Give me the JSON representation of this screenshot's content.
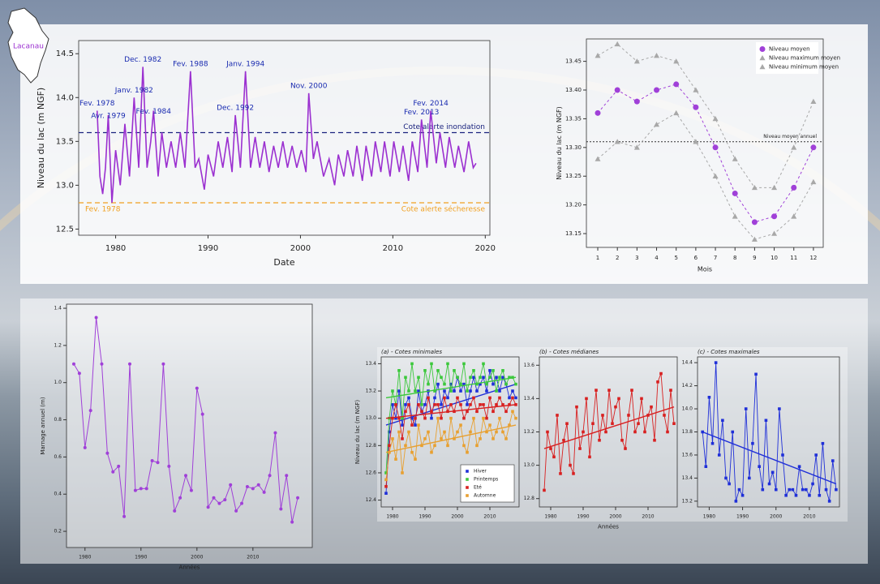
{
  "map_label": "Lacanau",
  "chart_data": [
    {
      "type": "line",
      "xlabel": "Date",
      "ylabel": "Niveau du lac (m NGF)",
      "color": "#9b30d0",
      "x": [
        1978.0,
        1978.3,
        1978.6,
        1978.9,
        1979.2,
        1979.6,
        1980.0,
        1980.5,
        1981.0,
        1981.5,
        1982.0,
        1982.5,
        1982.95,
        1983.4,
        1983.8,
        1984.1,
        1984.6,
        1985.0,
        1985.5,
        1986.0,
        1986.5,
        1987.0,
        1987.5,
        1988.1,
        1988.6,
        1989.0,
        1989.6,
        1990.0,
        1990.6,
        1991.1,
        1991.6,
        1992.1,
        1992.6,
        1992.95,
        1993.5,
        1994.05,
        1994.6,
        1995.1,
        1995.6,
        1996.1,
        1996.6,
        1997.1,
        1997.6,
        1998.1,
        1998.6,
        1999.1,
        1999.6,
        2000.1,
        2000.6,
        2000.9,
        2001.4,
        2001.8,
        2002.5,
        2003.1,
        2003.7,
        2004.1,
        2004.7,
        2005.1,
        2005.7,
        2006.1,
        2006.7,
        2007.1,
        2007.7,
        2008.1,
        2008.7,
        2009.1,
        2009.7,
        2010.1,
        2010.7,
        2011.1,
        2011.7,
        2012.1,
        2012.7,
        2013.1,
        2013.7,
        2014.1,
        2014.7,
        2015.1,
        2015.7,
        2016.1,
        2016.7,
        2017.1,
        2017.7,
        2018.2,
        2018.7,
        2019.0
      ],
      "values": [
        13.85,
        13.1,
        12.9,
        13.2,
        13.8,
        12.8,
        13.4,
        13.0,
        13.7,
        13.1,
        14.0,
        13.2,
        14.35,
        13.2,
        13.5,
        13.85,
        13.1,
        13.6,
        13.2,
        13.5,
        13.2,
        13.6,
        13.2,
        14.3,
        13.2,
        13.3,
        12.95,
        13.35,
        13.1,
        13.5,
        13.2,
        13.55,
        13.15,
        13.8,
        13.2,
        14.3,
        13.2,
        13.55,
        13.2,
        13.5,
        13.15,
        13.45,
        13.2,
        13.5,
        13.2,
        13.45,
        13.2,
        13.4,
        13.15,
        14.05,
        13.3,
        13.5,
        13.1,
        13.3,
        13.0,
        13.35,
        13.1,
        13.4,
        13.1,
        13.45,
        13.05,
        13.45,
        13.1,
        13.5,
        13.15,
        13.5,
        13.1,
        13.5,
        13.15,
        13.45,
        13.05,
        13.5,
        13.15,
        13.75,
        13.2,
        13.85,
        13.25,
        13.6,
        13.2,
        13.55,
        13.2,
        13.45,
        13.15,
        13.5,
        13.2,
        13.25
      ],
      "xlim": [
        1976,
        2020.5
      ],
      "ylim": [
        12.43,
        14.65
      ],
      "xticks": [
        1980,
        1990,
        2000,
        2010,
        2020
      ],
      "yticks": [
        12.5,
        {
          "value": 13,
          "label": "13.0"
        },
        13.5,
        {
          "value": 14,
          "label": "14.0"
        },
        14.5
      ],
      "annotations": [
        {
          "text": "Fev. 1978",
          "x": 1978.0,
          "y": 13.85
        },
        {
          "text": "Avr. 1979",
          "x": 1979.2,
          "y": 13.8
        },
        {
          "text": "Janv. 1982",
          "x": 1982.0,
          "y": 14.0
        },
        {
          "text": "Dec. 1982",
          "x": 1982.95,
          "y": 14.35
        },
        {
          "text": "Fev. 1984",
          "x": 1984.1,
          "y": 13.85
        },
        {
          "text": "Fev. 1988",
          "x": 1988.1,
          "y": 14.3
        },
        {
          "text": "Dec. 1992",
          "x": 1992.95,
          "y": 13.8
        },
        {
          "text": "Janv. 1994",
          "x": 1994.05,
          "y": 14.3
        },
        {
          "text": "Nov. 2000",
          "x": 2000.9,
          "y": 14.05
        },
        {
          "text": "Fev. 2013",
          "x": 2013.1,
          "y": 13.75
        },
        {
          "text": "Fev. 2014",
          "x": 2014.1,
          "y": 13.85
        }
      ],
      "thresholds": [
        {
          "label": "Cote alerte inondation",
          "value": 13.6,
          "color": "#1a237e"
        },
        {
          "label": "Cote alerte sécheresse",
          "value": 12.8,
          "color": "#f0a020",
          "annotation": "Fev. 1978"
        }
      ]
    },
    {
      "type": "line",
      "xlabel": "Mois",
      "ylabel": "Niveau du lac (m NGF)",
      "x": [
        1,
        2,
        3,
        4,
        5,
        6,
        7,
        8,
        9,
        10,
        11,
        12
      ],
      "series": [
        {
          "name": "Niveau moyen",
          "color": "#a040d8",
          "marker": "circle",
          "values": [
            13.36,
            13.4,
            13.38,
            13.4,
            13.41,
            13.37,
            13.3,
            13.22,
            13.17,
            13.18,
            13.23,
            13.3
          ]
        },
        {
          "name": "Niveau maximum moyen",
          "color": "#a8a8a8",
          "marker": "triangle",
          "values": [
            13.46,
            13.48,
            13.45,
            13.46,
            13.45,
            13.4,
            13.35,
            13.28,
            13.23,
            13.23,
            13.3,
            13.38
          ]
        },
        {
          "name": "Niveau minimum moyen",
          "color": "#a8a8a8",
          "marker": "triangle",
          "values": [
            13.28,
            13.31,
            13.3,
            13.34,
            13.36,
            13.31,
            13.25,
            13.18,
            13.14,
            13.15,
            13.18,
            13.24
          ]
        }
      ],
      "line_style": "dashed",
      "legend": "top-right",
      "xlim": [
        0.42,
        12.5
      ],
      "ylim": [
        13.126,
        13.489
      ],
      "xticks": [
        1,
        2,
        3,
        4,
        5,
        6,
        7,
        8,
        9,
        10,
        11,
        12
      ],
      "yticks": [
        13.15,
        {
          "value": 13.2,
          "label": "13.20"
        },
        13.25,
        {
          "value": 13.3,
          "label": "13.30"
        },
        13.35,
        {
          "value": 13.4,
          "label": "13.40"
        },
        13.45
      ],
      "reference": {
        "label": "Niveau moyen annuel",
        "value": 13.31
      }
    },
    {
      "type": "line",
      "xlabel": "Années",
      "ylabel": "Marnage annuel (m)",
      "color": "#a040d8",
      "marker": "circle",
      "x": [
        1978,
        1979,
        1980,
        1981,
        1982,
        1983,
        1984,
        1985,
        1986,
        1987,
        1988,
        1989,
        1990,
        1991,
        1992,
        1993,
        1994,
        1995,
        1996,
        1997,
        1998,
        1999,
        2000,
        2001,
        2002,
        2003,
        2004,
        2005,
        2006,
        2007,
        2008,
        2009,
        2010,
        2011,
        2012,
        2013,
        2014,
        2015,
        2016,
        2017,
        2018
      ],
      "values": [
        1.1,
        1.05,
        0.65,
        0.85,
        1.35,
        1.1,
        0.62,
        0.52,
        0.55,
        0.28,
        1.1,
        0.42,
        0.43,
        0.43,
        0.58,
        0.57,
        1.1,
        0.55,
        0.31,
        0.38,
        0.5,
        0.42,
        0.97,
        0.83,
        0.33,
        0.38,
        0.35,
        0.37,
        0.45,
        0.31,
        0.35,
        0.44,
        0.43,
        0.45,
        0.41,
        0.5,
        0.73,
        0.32,
        0.5,
        0.25,
        0.38
      ],
      "xlim": [
        1976.7,
        2020.6
      ],
      "ylim": [
        0.113,
        1.422
      ],
      "xticks": [
        1980,
        1990,
        2000,
        2010
      ],
      "yticks": [
        0.2,
        0.4,
        0.6,
        0.8,
        {
          "value": 1,
          "label": "1.0"
        },
        1.2,
        1.4
      ]
    },
    {
      "type": "line",
      "title": "(a) - Cotes minimales",
      "ylabel": "Niveau du lac (m NGF)",
      "marker": "square",
      "legend": "bottom-right",
      "x": [
        1978,
        1979,
        1980,
        1981,
        1982,
        1983,
        1984,
        1985,
        1986,
        1987,
        1988,
        1989,
        1990,
        1991,
        1992,
        1993,
        1994,
        1995,
        1996,
        1997,
        1998,
        1999,
        2000,
        2001,
        2002,
        2003,
        2004,
        2005,
        2006,
        2007,
        2008,
        2009,
        2010,
        2011,
        2012,
        2013,
        2014,
        2015,
        2016,
        2017,
        2018
      ],
      "series": [
        {
          "name": "Hiver",
          "color": "#1f2fd8",
          "values": [
            12.45,
            12.9,
            13.1,
            13.0,
            13.2,
            12.95,
            13.1,
            13.15,
            13.0,
            12.95,
            13.2,
            13.05,
            13.1,
            13.2,
            13.0,
            13.15,
            13.25,
            13.1,
            13.2,
            13.15,
            13.25,
            13.2,
            13.3,
            13.2,
            13.25,
            13.1,
            13.2,
            13.3,
            13.2,
            13.25,
            13.3,
            13.2,
            13.35,
            13.25,
            13.3,
            13.2,
            13.3,
            13.25,
            13.15,
            13.2,
            13.15
          ],
          "trend": {
            "x": [
              1978,
              2018
            ],
            "values": [
              12.95,
              13.25
            ]
          }
        },
        {
          "name": "Printemps",
          "color": "#3cc83c",
          "values": [
            12.6,
            13.0,
            13.2,
            13.1,
            13.35,
            13.0,
            13.3,
            13.2,
            13.4,
            13.2,
            13.3,
            13.1,
            13.35,
            13.25,
            13.4,
            13.2,
            13.35,
            13.3,
            13.25,
            13.4,
            13.2,
            13.35,
            13.3,
            13.25,
            13.4,
            13.2,
            13.3,
            13.35,
            13.25,
            13.3,
            13.4,
            13.25,
            13.3,
            13.35,
            13.2,
            13.3,
            13.35,
            13.25,
            13.3,
            13.3,
            13.25
          ],
          "trend": {
            "x": [
              1978,
              2018
            ],
            "values": [
              13.15,
              13.3
            ]
          }
        },
        {
          "name": "Eté",
          "color": "#d82020",
          "values": [
            12.5,
            12.8,
            13.0,
            13.1,
            13.0,
            12.85,
            13.05,
            13.1,
            12.95,
            13.0,
            13.1,
            13.05,
            13.0,
            13.15,
            13.05,
            13.1,
            13.1,
            13.0,
            13.15,
            13.05,
            13.1,
            13.05,
            13.15,
            13.1,
            13.0,
            13.05,
            13.1,
            13.15,
            13.05,
            13.1,
            13.1,
            13.0,
            13.15,
            13.05,
            13.1,
            13.15,
            13.1,
            13.05,
            13.1,
            13.15,
            13.1
          ],
          "trend": {
            "x": [
              1978,
              2018
            ],
            "values": [
              13.0,
              13.1
            ]
          }
        },
        {
          "name": "Automne",
          "color": "#e8a030",
          "values": [
            12.55,
            12.75,
            12.85,
            12.7,
            12.9,
            12.6,
            12.8,
            12.9,
            12.75,
            12.7,
            12.95,
            12.8,
            12.85,
            12.9,
            12.75,
            12.8,
            13.0,
            12.85,
            12.9,
            12.8,
            13.0,
            12.85,
            12.9,
            12.95,
            12.8,
            12.75,
            12.9,
            13.0,
            12.8,
            12.85,
            13.0,
            12.9,
            12.95,
            12.85,
            12.9,
            13.0,
            12.9,
            12.85,
            12.95,
            13.05,
            13.0
          ],
          "trend": {
            "x": [
              1978,
              2018
            ],
            "values": [
              12.75,
              12.95
            ]
          }
        }
      ],
      "xlim": [
        1976.5,
        2019
      ],
      "ylim": [
        12.35,
        13.45
      ],
      "xticks": [
        1980,
        1990,
        2000,
        2010
      ],
      "yticks": [
        12.4,
        12.6,
        12.8,
        {
          "value": 13,
          "label": "13.0"
        },
        13.2,
        13.4
      ]
    },
    {
      "type": "line",
      "title": "(b) - Cotes médianes",
      "xlabel": "Années",
      "color": "#d82020",
      "marker": "square",
      "x": [
        1978,
        1979,
        1980,
        1981,
        1982,
        1983,
        1984,
        1985,
        1986,
        1987,
        1988,
        1989,
        1990,
        1991,
        1992,
        1993,
        1994,
        1995,
        1996,
        1997,
        1998,
        1999,
        2000,
        2001,
        2002,
        2003,
        2004,
        2005,
        2006,
        2007,
        2008,
        2009,
        2010,
        2011,
        2012,
        2013,
        2014,
        2015,
        2016,
        2017,
        2018
      ],
      "values": [
        12.85,
        13.2,
        13.1,
        13.05,
        13.3,
        12.95,
        13.15,
        13.25,
        13.0,
        12.95,
        13.35,
        13.1,
        13.2,
        13.4,
        13.05,
        13.25,
        13.45,
        13.15,
        13.3,
        13.2,
        13.45,
        13.25,
        13.35,
        13.4,
        13.15,
        13.1,
        13.3,
        13.45,
        13.2,
        13.25,
        13.4,
        13.2,
        13.3,
        13.35,
        13.15,
        13.5,
        13.55,
        13.3,
        13.2,
        13.45,
        13.25
      ],
      "trend": {
        "x": [
          1978,
          2018
        ],
        "values": [
          13.1,
          13.35
        ]
      },
      "xlim": [
        1976.5,
        2019
      ],
      "ylim": [
        12.75,
        13.65
      ],
      "xticks": [
        1980,
        1990,
        2000,
        2010
      ],
      "yticks": [
        12.8,
        {
          "value": 13,
          "label": "13.0"
        },
        13.2,
        13.4,
        13.6
      ]
    },
    {
      "type": "line",
      "title": "(c) - Cotes maximales",
      "color": "#1f2fd8",
      "marker": "square",
      "x": [
        1978,
        1979,
        1980,
        1981,
        1982,
        1983,
        1984,
        1985,
        1986,
        1987,
        1988,
        1989,
        1990,
        1991,
        1992,
        1993,
        1994,
        1995,
        1996,
        1997,
        1998,
        1999,
        2000,
        2001,
        2002,
        2003,
        2004,
        2005,
        2006,
        2007,
        2008,
        2009,
        2010,
        2011,
        2012,
        2013,
        2014,
        2015,
        2016,
        2017,
        2018
      ],
      "values": [
        13.8,
        13.5,
        14.1,
        13.7,
        14.4,
        13.6,
        13.9,
        13.4,
        13.35,
        13.8,
        13.2,
        13.3,
        13.25,
        14.0,
        13.4,
        13.7,
        14.3,
        13.5,
        13.3,
        13.9,
        13.35,
        13.45,
        13.3,
        14.0,
        13.6,
        13.25,
        13.3,
        13.3,
        13.25,
        13.5,
        13.3,
        13.3,
        13.25,
        13.35,
        13.6,
        13.25,
        13.7,
        13.3,
        13.2,
        13.55,
        13.3
      ],
      "trend": {
        "x": [
          1978,
          2018
        ],
        "values": [
          13.8,
          13.35
        ]
      },
      "xlim": [
        1976.5,
        2019
      ],
      "ylim": [
        13.15,
        14.45
      ],
      "xticks": [
        1980,
        1990,
        2000,
        2010
      ],
      "yticks": [
        13.2,
        13.4,
        13.6,
        13.8,
        {
          "value": 14,
          "label": "14.0"
        },
        14.2,
        14.4
      ]
    }
  ]
}
